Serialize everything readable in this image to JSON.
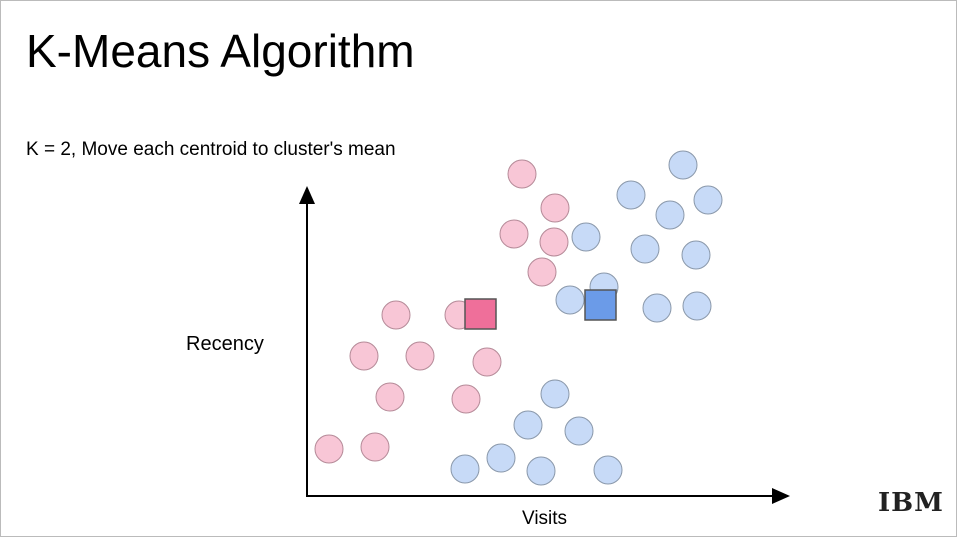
{
  "header": {
    "title": "K-Means Algorithm",
    "subtitle": "K = 2, Move each centroid to cluster's mean"
  },
  "diagram": {
    "y_axis_label": "Recency",
    "x_axis_label": "Visits"
  },
  "footer": {
    "logo": "IBM"
  }
}
